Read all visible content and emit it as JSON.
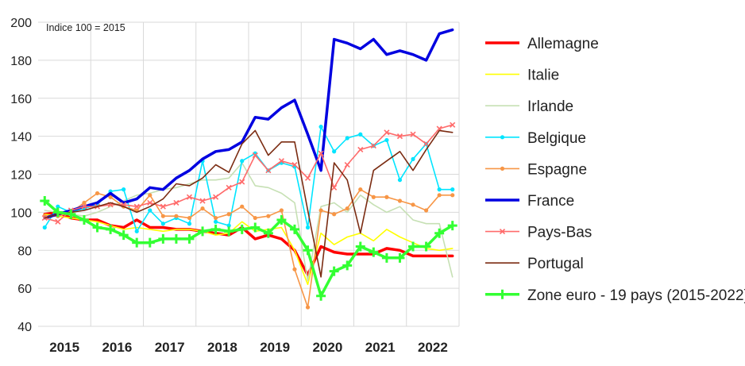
{
  "chart_data": {
    "type": "line",
    "annotation": "Indice 100 = 2015",
    "ylim": [
      40,
      200
    ],
    "y_ticks": [
      "40",
      "60",
      "80",
      "100",
      "120",
      "140",
      "160",
      "180",
      "200"
    ],
    "x_tick_labels": [
      "2015",
      "2016",
      "2017",
      "2018",
      "2019",
      "2020",
      "2021",
      "2022"
    ],
    "x": [
      "2015T1",
      "2015T2",
      "2015T3",
      "2015T4",
      "2016T1",
      "2016T2",
      "2016T3",
      "2016T4",
      "2017T1",
      "2017T2",
      "2017T3",
      "2017T4",
      "2018T1",
      "2018T2",
      "2018T3",
      "2018T4",
      "2019T1",
      "2019T2",
      "2019T3",
      "2019T4",
      "2020T1",
      "2020T2",
      "2020T3",
      "2020T4",
      "2021T1",
      "2021T2",
      "2021T3",
      "2021T4",
      "2022T1",
      "2022T2",
      "2022T3",
      "2022T4"
    ],
    "series": [
      {
        "name": "Allemagne",
        "color": "#ff0000",
        "width": 3.5,
        "marker": "none",
        "values": [
          99,
          100,
          97,
          96,
          96,
          93,
          92,
          96,
          92,
          92,
          91,
          91,
          90,
          89,
          88,
          92,
          86,
          88,
          86,
          80,
          67,
          82,
          79,
          78,
          78,
          78,
          81,
          80,
          77,
          77,
          77,
          77
        ]
      },
      {
        "name": "Italie",
        "color": "#ffff00",
        "width": 1.6,
        "marker": "none",
        "values": [
          99,
          98,
          97,
          96,
          95,
          93,
          91,
          92,
          91,
          90,
          91,
          91,
          90,
          88,
          89,
          95,
          90,
          91,
          92,
          80,
          62,
          89,
          83,
          87,
          89,
          85,
          91,
          87,
          84,
          81,
          80,
          81
        ]
      },
      {
        "name": "Irlande",
        "color": "#c6e0b4",
        "width": 1.6,
        "marker": "none",
        "values": [
          101,
          100,
          99,
          98,
          100,
          103,
          106,
          109,
          110,
          112,
          113,
          115,
          117,
          117,
          118,
          126,
          114,
          113,
          110,
          105,
          64,
          103,
          105,
          100,
          109,
          104,
          100,
          103,
          96,
          94,
          94,
          66
        ]
      },
      {
        "name": "Belgique",
        "color": "#00e5ff",
        "width": 1.6,
        "marker": "dot",
        "values": [
          92,
          103,
          100,
          102,
          104,
          111,
          112,
          90,
          101,
          94,
          97,
          94,
          127,
          95,
          93,
          127,
          131,
          122,
          126,
          124,
          92,
          145,
          132,
          139,
          141,
          135,
          138,
          117,
          128,
          136,
          112,
          112
        ]
      },
      {
        "name": "Espagne",
        "color": "#f79646",
        "width": 1.6,
        "marker": "dot",
        "values": [
          98,
          98,
          100,
          105,
          110,
          108,
          103,
          101,
          109,
          98,
          98,
          97,
          102,
          97,
          99,
          103,
          97,
          98,
          101,
          70,
          50,
          101,
          99,
          102,
          112,
          108,
          108,
          106,
          104,
          101,
          109,
          109
        ]
      },
      {
        "name": "France",
        "color": "#0000e0",
        "width": 3.5,
        "marker": "none",
        "values": [
          97,
          99,
          101,
          103,
          105,
          110,
          105,
          107,
          113,
          112,
          118,
          122,
          128,
          132,
          133,
          137,
          150,
          149,
          155,
          159,
          141,
          122,
          191,
          189,
          186,
          191,
          183,
          185,
          183,
          180,
          194,
          196
        ]
      },
      {
        "name": "Pays-Bas",
        "color": "#ff6b6b",
        "width": 1.6,
        "marker": "cross",
        "values": [
          97,
          95,
          101,
          103,
          103,
          104,
          104,
          103,
          105,
          103,
          105,
          108,
          106,
          108,
          113,
          116,
          130,
          122,
          127,
          125,
          118,
          131,
          113,
          125,
          133,
          135,
          142,
          140,
          141,
          136,
          144,
          146
        ]
      },
      {
        "name": "Portugal",
        "color": "#7b2c12",
        "width": 1.6,
        "marker": "none",
        "values": [
          97,
          99,
          100,
          101,
          103,
          105,
          103,
          100,
          103,
          107,
          115,
          114,
          118,
          125,
          121,
          136,
          143,
          130,
          137,
          137,
          101,
          66,
          126,
          117,
          89,
          122,
          127,
          132,
          122,
          133,
          143,
          142
        ]
      },
      {
        "name": "Zone euro - 19 pays (2015-2022)",
        "color": "#33ff33",
        "width": 3.5,
        "marker": "plus",
        "values": [
          106,
          100,
          99,
          96,
          92,
          91,
          88,
          84,
          84,
          86,
          86,
          86,
          90,
          91,
          90,
          91,
          92,
          89,
          96,
          91,
          80,
          56,
          69,
          72,
          82,
          79,
          76,
          76,
          82,
          82,
          89,
          93
        ]
      }
    ]
  }
}
